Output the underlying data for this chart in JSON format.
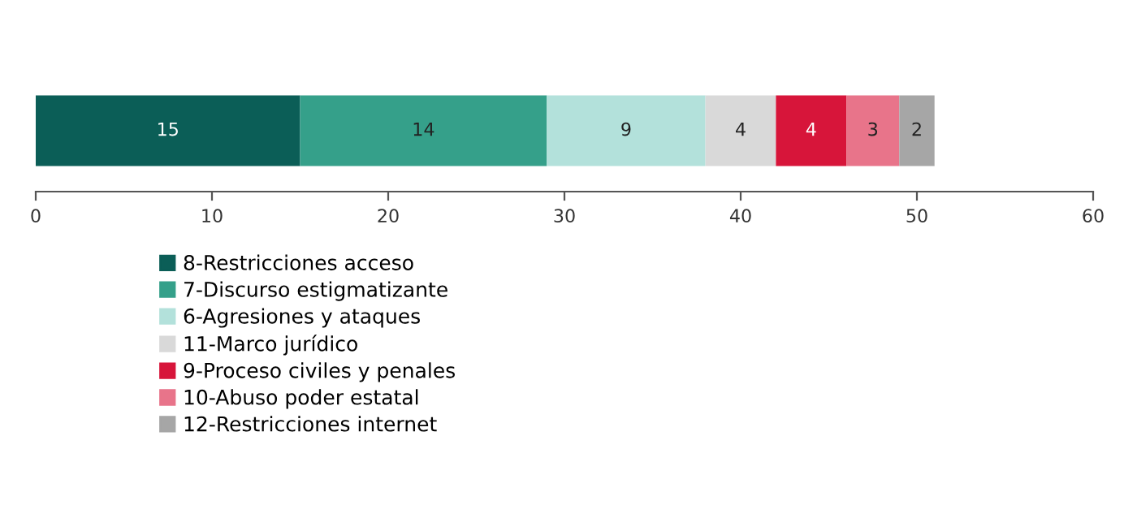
{
  "chart_data": {
    "type": "bar",
    "orientation": "horizontal",
    "stacked": true,
    "categories": [
      null
    ],
    "series": [
      {
        "name": "8-Restricciones acceso",
        "color": "#0b5e57",
        "values": [
          15
        ]
      },
      {
        "name": "7-Discurso estigmatizante",
        "color": "#35a08a",
        "values": [
          14
        ]
      },
      {
        "name": "6-Agresiones y ataques",
        "color": "#b3e1db",
        "values": [
          9
        ]
      },
      {
        "name": "11-Marco jurídico",
        "color": "#d9d9d9",
        "values": [
          4
        ]
      },
      {
        "name": "9-Proceso civiles y penales",
        "color": "#d7153a",
        "values": [
          4
        ]
      },
      {
        "name": "10-Abuso poder estatal",
        "color": "#e8748a",
        "values": [
          3
        ]
      },
      {
        "name": "12-Restricciones internet",
        "color": "#a6a6a6",
        "values": [
          2
        ]
      }
    ],
    "xlim": [
      0,
      60
    ],
    "xticks": [
      0,
      10,
      20,
      30,
      40,
      50,
      60
    ],
    "data_labels": true,
    "tick_labels": "x",
    "legend": "bottom",
    "grid": false
  }
}
